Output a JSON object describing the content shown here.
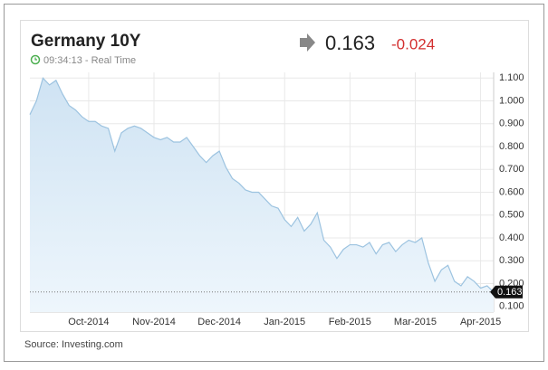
{
  "chart_data": {
    "type": "area",
    "title": "Germany 10Y",
    "time": "09:34:13 - Real Time",
    "change": -0.024,
    "source": "Source: Investing.com",
    "categories": [
      null,
      null,
      null,
      null,
      null,
      null,
      null,
      null,
      null,
      "Oct-2014",
      null,
      null,
      null,
      null,
      null,
      null,
      null,
      null,
      null,
      "Nov-2014",
      null,
      null,
      null,
      null,
      null,
      null,
      null,
      null,
      null,
      "Dec-2014",
      null,
      null,
      null,
      null,
      null,
      null,
      null,
      null,
      null,
      "Jan-2015",
      null,
      null,
      null,
      null,
      null,
      null,
      null,
      null,
      null,
      "Feb-2015",
      null,
      null,
      null,
      null,
      null,
      null,
      null,
      null,
      null,
      "Mar-2015",
      null,
      null,
      null,
      null,
      null,
      null,
      null,
      null,
      null,
      "Apr-2015",
      null,
      null
    ],
    "series": [
      {
        "name": "Germany 10Y",
        "color": "#9cc3e0",
        "values": [
          0.94,
          1.0,
          1.1,
          1.07,
          1.09,
          1.03,
          0.98,
          0.96,
          0.93,
          0.91,
          0.91,
          0.89,
          0.88,
          0.78,
          0.86,
          0.88,
          0.89,
          0.88,
          0.86,
          0.84,
          0.83,
          0.84,
          0.82,
          0.82,
          0.84,
          0.8,
          0.76,
          0.73,
          0.76,
          0.78,
          0.71,
          0.66,
          0.64,
          0.61,
          0.6,
          0.6,
          0.57,
          0.54,
          0.53,
          0.48,
          0.45,
          0.49,
          0.43,
          0.46,
          0.51,
          0.39,
          0.36,
          0.31,
          0.35,
          0.37,
          0.37,
          0.36,
          0.38,
          0.33,
          0.37,
          0.38,
          0.34,
          0.37,
          0.39,
          0.38,
          0.4,
          0.29,
          0.21,
          0.26,
          0.28,
          0.21,
          0.19,
          0.23,
          0.21,
          0.18,
          0.19,
          0.163
        ]
      }
    ],
    "ylim": [
      0.075,
      1.125
    ],
    "yticks": [
      {
        "value": 0.1,
        "label": "0.100"
      },
      {
        "value": 0.2,
        "label": "0.200"
      },
      {
        "value": 0.3,
        "label": "0.300"
      },
      {
        "value": 0.4,
        "label": "0.400"
      },
      {
        "value": 0.5,
        "label": "0.500"
      },
      {
        "value": 0.6,
        "label": "0.600"
      },
      {
        "value": 0.7,
        "label": "0.700"
      },
      {
        "value": 0.8,
        "label": "0.800"
      },
      {
        "value": 0.9,
        "label": "0.900"
      },
      {
        "value": 1.0,
        "label": "1.000"
      },
      {
        "value": 1.1,
        "label": "1.100"
      }
    ],
    "grid": true
  }
}
